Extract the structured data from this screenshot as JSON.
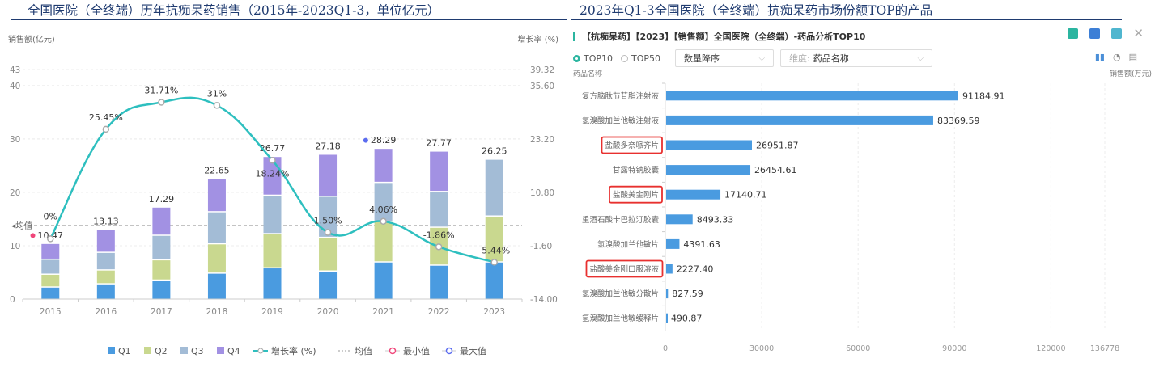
{
  "left_panel": {
    "title": "全国医院（全终端）历年抗痴呆药销售（2015年-2023Q1-3，单位亿元）"
  },
  "right_panel": {
    "title": "2023年Q1-3全国医院（全终端）抗痴呆药市场份额TOP的产品",
    "header": "【抗痴呆药】【2023】【销售额】全国医院（全终端）-药品分析TOP10",
    "tools": [
      "search-doc-icon",
      "excel-icon",
      "image-icon",
      "close-icon"
    ],
    "radio": [
      {
        "label": "TOP10",
        "selected": true
      },
      {
        "label": "TOP50",
        "selected": false
      }
    ],
    "sort_select": "数量降序",
    "dimension_prefix": "维度:",
    "dimension_select": "药品名称",
    "view_icons": [
      "bar-chart-icon",
      "pie-chart-icon",
      "document-icon"
    ],
    "y_title": "药品名称",
    "x_title": "销售额(万元)"
  },
  "chart_data": [
    {
      "type": "bar",
      "stacked": true,
      "title": "全国医院（全终端）历年抗痴呆药销售（2015年-2023Q1-3，单位亿元）",
      "ylabel": "销售额(亿元)",
      "y2label": "增长率 (%)",
      "categories": [
        "2015",
        "2016",
        "2017",
        "2018",
        "2019",
        "2020",
        "2021",
        "2022",
        "2023"
      ],
      "ylim": [
        0,
        43
      ],
      "y_ticks": [
        "0",
        "10",
        "20",
        "30",
        "40",
        "43"
      ],
      "y2lim": [
        -14.0,
        39.32
      ],
      "y2_ticks": [
        "-14.00",
        "-1.60",
        "10.80",
        "23.20",
        "35.60",
        "39.32"
      ],
      "series": [
        {
          "name": "Q1",
          "color": "#4a9be0",
          "values": [
            2.3,
            2.9,
            3.6,
            4.9,
            5.9,
            5.3,
            7.0,
            6.4,
            7.0
          ]
        },
        {
          "name": "Q2",
          "color": "#c9d88f",
          "values": [
            2.4,
            2.6,
            3.8,
            5.5,
            6.4,
            6.3,
            7.6,
            7.1,
            8.6
          ]
        },
        {
          "name": "Q3",
          "color": "#a3bcd6",
          "values": [
            2.8,
            3.3,
            4.6,
            6.0,
            7.2,
            7.7,
            7.3,
            6.7,
            10.65
          ]
        },
        {
          "name": "Q4",
          "color": "#a291e3",
          "values": [
            2.97,
            4.33,
            5.29,
            6.25,
            7.27,
            7.88,
            6.39,
            7.57,
            null
          ]
        }
      ],
      "totals": [
        10.47,
        13.13,
        17.29,
        22.65,
        26.77,
        27.18,
        28.29,
        27.77,
        26.25
      ],
      "total_labels": [
        "10.47",
        "13.13",
        "17.29",
        "22.65",
        "26.77",
        "27.18",
        "28.29",
        "27.77",
        "26.25"
      ],
      "growth": {
        "name": "增长率 (%)",
        "color": "#2ebfbf",
        "values": [
          0,
          25.45,
          31.71,
          31,
          18.24,
          1.5,
          4.06,
          -1.86,
          -5.44
        ],
        "labels": [
          "0%",
          "25.45%",
          "31.71%",
          "31%",
          "18.24%",
          "1.50%",
          "4.06%",
          "-1.86%",
          "-5.44%"
        ]
      },
      "mean_line": {
        "label": "均值",
        "value": 13.84
      },
      "min_marker": {
        "category": "2015",
        "color": "#f0467a"
      },
      "max_marker": {
        "category": "2021",
        "color": "#5b6cf0"
      },
      "legend": [
        "Q1",
        "Q2",
        "Q3",
        "Q4",
        "增长率 (%)",
        "均值",
        "最小值",
        "最大值"
      ],
      "legend_position": "bottom",
      "grid": true
    },
    {
      "type": "bar",
      "orientation": "horizontal",
      "title": "【抗痴呆药】【2023】【销售额】全国医院（全终端）-药品分析TOP10",
      "ylabel": "药品名称",
      "xlabel": "销售额(万元)",
      "categories": [
        "复方脑肽节苷脂注射液",
        "氢溴酸加兰他敏注射液",
        "盐酸多奈哌齐片",
        "甘露特钠胶囊",
        "盐酸美金刚片",
        "重酒石酸卡巴拉汀胶囊",
        "氢溴酸加兰他敏片",
        "盐酸美金刚口服溶液",
        "氢溴酸加兰他敏分散片",
        "氢溴酸加兰他敏缓释片"
      ],
      "values": [
        91184.91,
        83369.59,
        26951.87,
        26454.61,
        17140.71,
        8493.33,
        4391.63,
        2227.4,
        827.59,
        490.87
      ],
      "value_labels": [
        "91184.91",
        "83369.59",
        "26951.87",
        "26454.61",
        "17140.71",
        "8493.33",
        "4391.63",
        "2227.40",
        "827.59",
        "490.87"
      ],
      "highlighted": [
        "盐酸多奈哌齐片",
        "盐酸美金刚片",
        "盐酸美金刚口服溶液"
      ],
      "highlight_color": "#e8302f",
      "bar_color": "#4a9be0",
      "xlim": [
        0,
        136778
      ],
      "x_ticks": [
        "0",
        "30000",
        "60000",
        "90000",
        "120000",
        "136778"
      ],
      "grid": true
    }
  ]
}
